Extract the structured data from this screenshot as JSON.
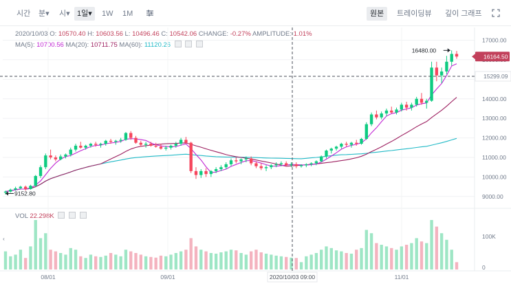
{
  "toolbar": {
    "intervals": [
      {
        "label": "시간",
        "active": false,
        "dropdown": false
      },
      {
        "label": "분",
        "active": false,
        "dropdown": true
      },
      {
        "label": "시",
        "active": false,
        "dropdown": true
      },
      {
        "label": "1일",
        "active": true,
        "dropdown": true
      },
      {
        "label": "1W",
        "active": false,
        "dropdown": false
      },
      {
        "label": "1M",
        "active": false,
        "dropdown": false
      }
    ],
    "settings_icon": "sliders-icon",
    "views": [
      {
        "label": "원본",
        "active": true
      },
      {
        "label": "트레이딩뷰",
        "active": false
      },
      {
        "label": "깊이 그래프",
        "active": false
      }
    ],
    "expand_icon": "expand-icon"
  },
  "ohlc": {
    "date": "2020/10/03",
    "o_label": "O:",
    "o": "10570.40",
    "h_label": "H:",
    "h": "10603.56",
    "l_label": "L:",
    "l": "10496.46",
    "c_label": "C:",
    "c": "10542.06",
    "change_label": "CHANGE:",
    "change": "-0.27%",
    "amplitude_label": "AMPLITUDE:",
    "amplitude": "1.01%"
  },
  "ma": {
    "ma5_label": "MA(5):",
    "ma5": "10700.56",
    "ma20_label": "MA(20):",
    "ma20": "10711.75",
    "ma60_label": "MA(60):",
    "ma60": "11120.26"
  },
  "volume": {
    "label": "VOL",
    "value": "22.298K"
  },
  "price_axis": [
    "17000.00",
    "16000.00",
    "15000.00",
    "14000.00",
    "13000.00",
    "12000.00",
    "11000.00",
    "10000.00",
    "9000.00"
  ],
  "volume_axis": [
    "100K",
    "0"
  ],
  "time_axis": [
    "08/01",
    "09/01",
    "11/01"
  ],
  "crosshair": {
    "time_label": "2020/10/03 09:00",
    "price_label": "15299.09"
  },
  "last_price": "16164.50",
  "high_marker": "16480.00",
  "low_marker": "9152.80",
  "colors": {
    "up": "#0ecb81",
    "down": "#f6465d",
    "ma5": "#c026d3",
    "ma20": "#9c1e5f",
    "ma60": "#1fb9c6",
    "last_price_bg": "#c2405b"
  },
  "chart_data": {
    "type": "candlestick",
    "series": [
      {
        "name": "MA(5)",
        "value": 10700.56
      },
      {
        "name": "MA(20)",
        "value": 10711.75
      },
      {
        "name": "MA(60)",
        "value": 11120.26
      }
    ],
    "y_range": [
      8500,
      17300
    ],
    "volume_range": [
      0,
      150000
    ],
    "x_ticks": [
      "08/01",
      "09/01",
      "11/01"
    ],
    "candles": [
      [
        9200,
        9300,
        9100,
        9250
      ],
      [
        9250,
        9400,
        9200,
        9350
      ],
      [
        9350,
        9500,
        9300,
        9420
      ],
      [
        9420,
        9550,
        9380,
        9500
      ],
      [
        9500,
        9560,
        9300,
        9380
      ],
      [
        9380,
        9600,
        9350,
        9550
      ],
      [
        9550,
        10100,
        9500,
        10050
      ],
      [
        10050,
        10600,
        9950,
        10500
      ],
      [
        10500,
        11200,
        10400,
        11100
      ],
      [
        11100,
        11400,
        10900,
        11000
      ],
      [
        11000,
        11100,
        10800,
        10900
      ],
      [
        10900,
        11150,
        10850,
        11050
      ],
      [
        11050,
        11200,
        10950,
        11150
      ],
      [
        11150,
        11500,
        11050,
        11400
      ],
      [
        11400,
        11700,
        11300,
        11600
      ],
      [
        11600,
        11800,
        11450,
        11500
      ],
      [
        11500,
        11650,
        11400,
        11600
      ],
      [
        11600,
        11750,
        11500,
        11700
      ],
      [
        11700,
        11800,
        11550,
        11650
      ],
      [
        11650,
        11750,
        11500,
        11700
      ],
      [
        11700,
        11900,
        11600,
        11850
      ],
      [
        11850,
        11950,
        11700,
        11800
      ],
      [
        11800,
        11900,
        11650,
        11850
      ],
      [
        11850,
        12000,
        11750,
        11900
      ],
      [
        11900,
        12300,
        11850,
        12250
      ],
      [
        12250,
        12350,
        11900,
        12000
      ],
      [
        12000,
        12100,
        11700,
        11750
      ],
      [
        11750,
        11850,
        11550,
        11650
      ],
      [
        11650,
        11800,
        11500,
        11700
      ],
      [
        11700,
        11800,
        11550,
        11600
      ],
      [
        11600,
        11750,
        11500,
        11550
      ],
      [
        11550,
        11700,
        11400,
        11450
      ],
      [
        11450,
        11600,
        11350,
        11500
      ],
      [
        11500,
        11650,
        11400,
        11600
      ],
      [
        11600,
        11800,
        11500,
        11700
      ],
      [
        11700,
        12000,
        11600,
        11900
      ],
      [
        11900,
        12050,
        11700,
        11750
      ],
      [
        11750,
        11800,
        10200,
        10300
      ],
      [
        10300,
        10500,
        9900,
        10100
      ],
      [
        10100,
        10400,
        9950,
        10300
      ],
      [
        10300,
        10450,
        10000,
        10150
      ],
      [
        10150,
        10350,
        10000,
        10300
      ],
      [
        10300,
        10500,
        10200,
        10400
      ],
      [
        10400,
        10600,
        10300,
        10500
      ],
      [
        10500,
        10750,
        10400,
        10650
      ],
      [
        10650,
        10950,
        10550,
        10850
      ],
      [
        10850,
        11000,
        10700,
        10800
      ],
      [
        10800,
        10950,
        10650,
        10900
      ],
      [
        10900,
        11050,
        10750,
        10950
      ],
      [
        10950,
        11050,
        10600,
        10700
      ],
      [
        10700,
        10800,
        10450,
        10550
      ],
      [
        10550,
        10700,
        10350,
        10450
      ],
      [
        10450,
        10600,
        10300,
        10500
      ],
      [
        10500,
        10650,
        10400,
        10600
      ],
      [
        10600,
        10750,
        10500,
        10650
      ],
      [
        10650,
        10800,
        10550,
        10700
      ],
      [
        10700,
        10800,
        10550,
        10600
      ],
      [
        10600,
        10750,
        10500,
        10650
      ],
      [
        10650,
        10750,
        10450,
        10550
      ],
      [
        10550,
        10650,
        10480,
        10600
      ],
      [
        10600,
        10700,
        10500,
        10650
      ],
      [
        10650,
        10750,
        10550,
        10700
      ],
      [
        10700,
        10850,
        10600,
        10800
      ],
      [
        10800,
        11100,
        10750,
        11050
      ],
      [
        11050,
        11400,
        10950,
        11350
      ],
      [
        11350,
        11500,
        11200,
        11450
      ],
      [
        11450,
        11600,
        11350,
        11550
      ],
      [
        11550,
        11750,
        11450,
        11700
      ],
      [
        11700,
        11800,
        11550,
        11650
      ],
      [
        11650,
        11800,
        11500,
        11750
      ],
      [
        11750,
        11900,
        11600,
        11700
      ],
      [
        11700,
        12000,
        11650,
        11950
      ],
      [
        11950,
        12800,
        11900,
        12700
      ],
      [
        12700,
        13300,
        12600,
        13200
      ],
      [
        13200,
        13400,
        12950,
        13050
      ],
      [
        13050,
        13350,
        12950,
        13250
      ],
      [
        13250,
        13500,
        13100,
        13400
      ],
      [
        13400,
        13600,
        13250,
        13300
      ],
      [
        13300,
        13550,
        13200,
        13450
      ],
      [
        13450,
        13800,
        13350,
        13700
      ],
      [
        13700,
        13850,
        13400,
        13550
      ],
      [
        13550,
        13800,
        13400,
        13700
      ],
      [
        13700,
        14100,
        13600,
        14000
      ],
      [
        14000,
        14300,
        13700,
        13800
      ],
      [
        13800,
        14000,
        13500,
        13900
      ],
      [
        13900,
        15900,
        13850,
        15600
      ],
      [
        15600,
        15900,
        14900,
        15200
      ],
      [
        15200,
        15600,
        14800,
        15400
      ],
      [
        15400,
        16200,
        15250,
        15900
      ],
      [
        15900,
        16480,
        15700,
        16300
      ],
      [
        16300,
        16450,
        16050,
        16164
      ]
    ],
    "volumes": [
      55000,
      40000,
      45000,
      60000,
      35000,
      70000,
      150000,
      95000,
      110000,
      60000,
      55000,
      50000,
      45000,
      65000,
      60000,
      40000,
      35000,
      45000,
      40000,
      38000,
      42000,
      50000,
      45000,
      40000,
      60000,
      55000,
      50000,
      45000,
      40000,
      38000,
      36000,
      42000,
      40000,
      45000,
      50000,
      55000,
      60000,
      95000,
      70000,
      60000,
      55000,
      50000,
      48000,
      52000,
      55000,
      60000,
      58000,
      50000,
      45000,
      55000,
      60000,
      52000,
      48000,
      45000,
      42000,
      40000,
      38000,
      36000,
      35000,
      22298,
      40000,
      45000,
      50000,
      60000,
      70000,
      65000,
      58000,
      55000,
      50000,
      48000,
      60000,
      65000,
      120000,
      110000,
      80000,
      75000,
      70000,
      65000,
      60000,
      70000,
      75000,
      80000,
      95000,
      85000,
      80000,
      150000,
      130000,
      110000,
      90000,
      60000,
      22298
    ]
  }
}
